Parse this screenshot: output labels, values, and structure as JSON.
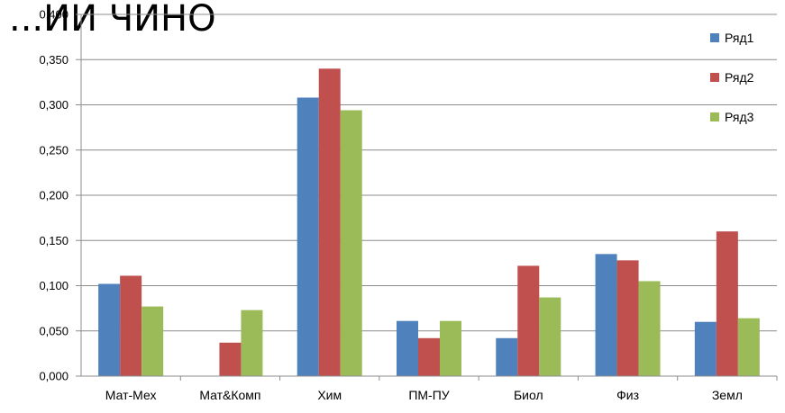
{
  "header_fragment": "...ИИ ЧИНО",
  "chart_data": {
    "type": "bar",
    "categories": [
      "Мат-Мех",
      "Мат&Комп",
      "Хим",
      "ПМ-ПУ",
      "Биол",
      "Физ",
      "Земл"
    ],
    "series": [
      {
        "name": "Ряд1",
        "color": "#4F81BD",
        "values": [
          0.102,
          0.0,
          0.308,
          0.061,
          0.042,
          0.135,
          0.06
        ]
      },
      {
        "name": "Ряд2",
        "color": "#C0504D",
        "values": [
          0.111,
          0.037,
          0.34,
          0.042,
          0.122,
          0.128,
          0.16
        ]
      },
      {
        "name": "Ряд3",
        "color": "#9BBB59",
        "values": [
          0.077,
          0.073,
          0.294,
          0.061,
          0.087,
          0.105,
          0.064
        ]
      }
    ],
    "ylim": [
      0,
      0.4
    ],
    "yticks": [
      "0,000",
      "0,050",
      "0,100",
      "0,150",
      "0,200",
      "0,250",
      "0,300",
      "0,350",
      "0,400"
    ],
    "grid": true,
    "legend_position": "top-right"
  }
}
